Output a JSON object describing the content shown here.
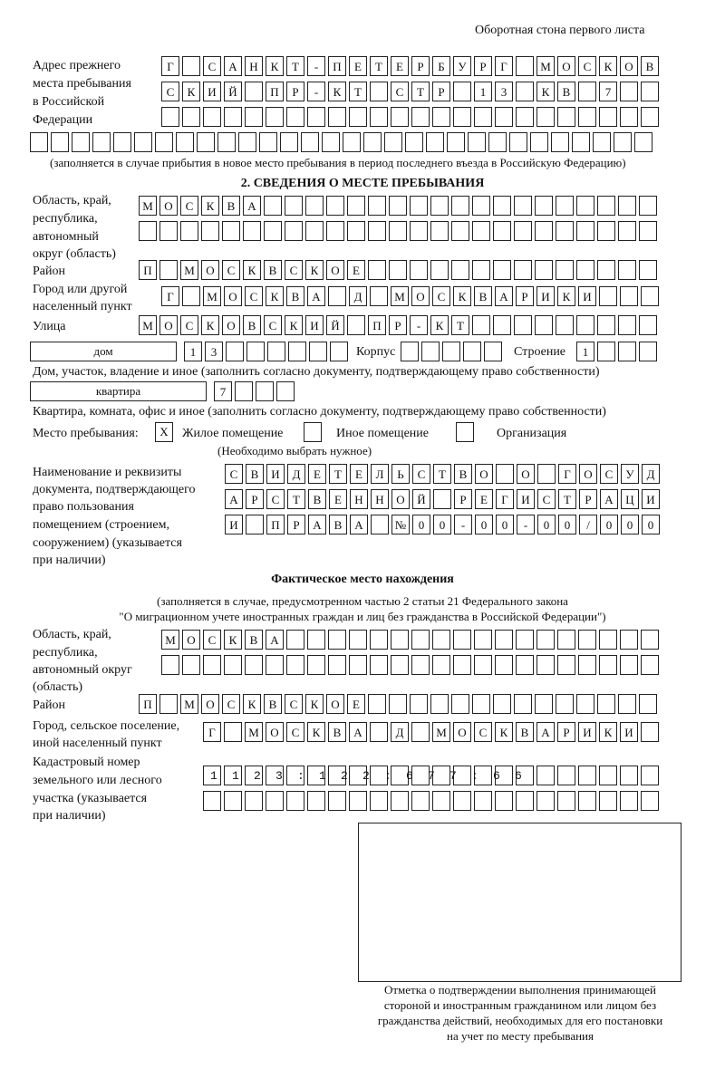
{
  "header": "Оборотная стона первого листа",
  "prev_address": {
    "label": [
      "Адрес прежнего",
      "места пребывания",
      "в Российской",
      "Федерации"
    ],
    "rows": [
      "Г САНКТ-ПЕТЕРБУРГ МОСКОВ",
      "СКИЙ ПР-КТ СТР 13 КВ 7  ",
      "",
      ""
    ],
    "note": "(заполняется в случае прибытия в новое место пребывания в период последнего въезда в Российскую Федерацию)"
  },
  "section2": {
    "title": "2. СВЕДЕНИЯ О МЕСТЕ ПРЕБЫВАНИЯ",
    "region_label": [
      "Область, край,",
      "республика,",
      "автономный",
      "округ (область)"
    ],
    "region_rows": [
      "МОСКВА",
      ""
    ],
    "district_label": "Район",
    "district": "П МОСКВСКОЕ",
    "city_label": [
      "Город или другой",
      "населенный пункт"
    ],
    "city": "Г МОСКВА Д МОСКВАРИКИ",
    "street_label": "Улица",
    "street": "МОСКОВСКИЙ ПР-КТ",
    "house_type": "дом",
    "house_number": "13",
    "korpus_label": "Корпус",
    "korpus": "",
    "building_label": "Строение",
    "building": "1",
    "house_note": "Дом, участок, владение и иное (заполнить согласно документу, подтверждающему право собственности)",
    "flat_type": "квартира",
    "flat_number": "7",
    "flat_note": "Квартира, комната, офис и иное (заполнить согласно документу, подтверждающему право собственности)",
    "stay_place_label": "Место пребывания:",
    "stay_options": [
      {
        "label": "Жилое помещение",
        "mark": "X"
      },
      {
        "label": "Иное помещение",
        "mark": ""
      },
      {
        "label": "Организация",
        "mark": ""
      }
    ],
    "stay_note": "(Необходимо выбрать нужное)",
    "doc_label": [
      "Наименование и реквизиты",
      "документа, подтверждающего",
      "право пользования",
      "помещением (строением,",
      "сооружением) (указывается",
      "при наличии)"
    ],
    "doc_rows": [
      "СВИДЕТЕЛЬСТВО О ГОСУД",
      "АРСТВЕННОЙ РЕГИСТРАЦИ",
      "И ПРАВА №00-00-00/000"
    ]
  },
  "actual": {
    "title": "Фактическое место нахождения",
    "note": [
      "(заполняется в случае, предусмотренном частью 2 статьи 21 Федерального закона",
      "\"О миграционном учете иностранных граждан и лиц без гражданства в Российской Федерации\")"
    ],
    "region_label": [
      "Область, край,",
      "республика,",
      "автономный округ",
      "(область)"
    ],
    "region_rows": [
      "МОСКВА",
      ""
    ],
    "district_label": "Район",
    "district": "П МОСКВСКОЕ",
    "city_label": [
      "Город, сельское поселение,",
      "иной населенный пункт"
    ],
    "city": "Г МОСКВА Д МОСКВАРИКИ",
    "cadastre_label": [
      "Кадастровый номер",
      "земельного или лесного",
      "участка (указывается",
      "при наличии)"
    ],
    "cadastre_rows": [
      "1123:122:677:66",
      ""
    ]
  },
  "stamp_caption": [
    "Отметка о подтверждении выполнения принимающей",
    "стороной и иностранным гражданином или лицом без",
    "гражданства действий, необходимых для его постановки",
    "на учет по месту пребывания"
  ]
}
